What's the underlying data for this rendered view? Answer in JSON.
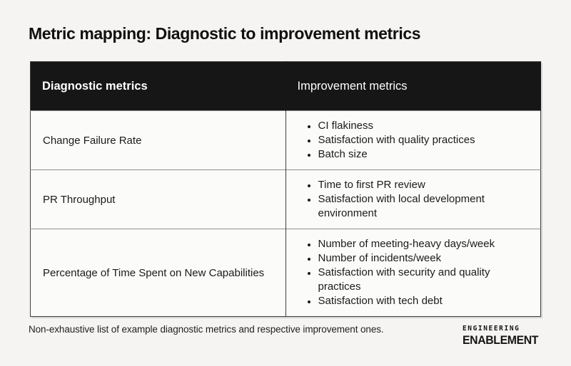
{
  "page": {
    "title": "Metric mapping: Diagnostic to improvement metrics",
    "footnote": "Non-exhaustive list of example diagnostic metrics and respective improvement ones."
  },
  "brand": {
    "line1": "ENGINEERING",
    "line2": "ENABLEMENT"
  },
  "table": {
    "headers": {
      "diagnostic": "Diagnostic metrics",
      "improvement": "Improvement metrics"
    },
    "rows": [
      {
        "diagnostic": "Change Failure Rate",
        "improvements": [
          "CI flakiness",
          "Satisfaction with quality practices",
          "Batch size"
        ]
      },
      {
        "diagnostic": "PR Throughput",
        "improvements": [
          "Time to first PR review",
          "Satisfaction with local development environment"
        ]
      },
      {
        "diagnostic": "Percentage of Time Spent on New Capabilities",
        "improvements": [
          "Number of meeting-heavy days/week",
          "Number of incidents/week",
          "Satisfaction with security and quality practices",
          "Satisfaction with tech debt"
        ]
      }
    ]
  },
  "colors": {
    "page_bg": "#f5f4f2",
    "header_bg": "#161616",
    "cell_bg": "#fbfbfa",
    "border_dark": "#3f3f3f",
    "border_light": "#8f8f8f",
    "header_text": "#ffffff",
    "body_text": "#1b1b1b"
  }
}
